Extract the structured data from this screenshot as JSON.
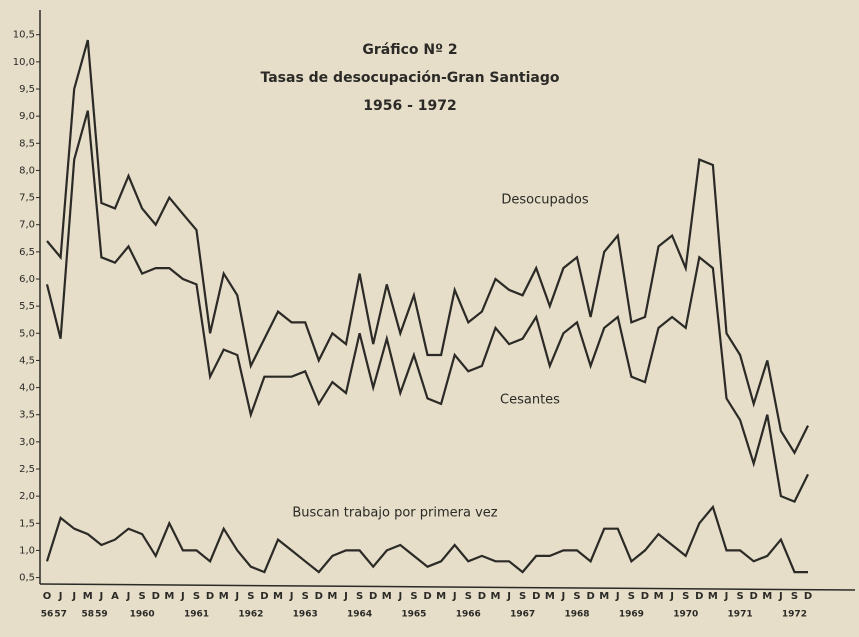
{
  "chart_data": {
    "type": "line",
    "title": "Gráfico Nº 2",
    "subtitle": "Tasas de desocupación-Gran Santiago",
    "period": "1956 - 1972",
    "categories": [
      "O",
      "J",
      "J",
      "M",
      "J",
      "A",
      "J",
      "S",
      "D",
      "M",
      "J",
      "S",
      "D",
      "M",
      "J",
      "S",
      "D",
      "M",
      "J",
      "S",
      "D",
      "M",
      "J",
      "S",
      "D",
      "M",
      "J",
      "S",
      "D",
      "M",
      "J",
      "S",
      "D",
      "M",
      "J",
      "S",
      "D",
      "M",
      "J",
      "S",
      "D",
      "M",
      "J",
      "S",
      "D",
      "M",
      "J",
      "S",
      "D",
      "M",
      "J",
      "S",
      "D",
      "M",
      "J",
      "S",
      "D"
    ],
    "category_years": [
      "56",
      "57",
      null,
      "58",
      "59",
      null,
      null,
      "1960",
      null,
      null,
      null,
      "1961",
      null,
      null,
      null,
      "1962",
      null,
      null,
      null,
      "1963",
      null,
      null,
      null,
      "1964",
      null,
      null,
      null,
      "1965",
      null,
      null,
      null,
      "1966",
      null,
      null,
      null,
      "1967",
      null,
      null,
      null,
      "1968",
      null,
      null,
      null,
      "1969",
      null,
      null,
      null,
      "1970",
      null,
      null,
      null,
      "1971",
      null,
      null,
      null,
      "1972",
      null
    ],
    "series": [
      {
        "name": "Desocupados",
        "color": "#2b2a26",
        "values": [
          6.7,
          6.4,
          9.5,
          10.4,
          7.4,
          7.3,
          7.9,
          7.3,
          7.0,
          7.5,
          7.2,
          6.9,
          5.0,
          6.1,
          5.7,
          4.4,
          4.9,
          5.4,
          5.2,
          5.2,
          4.5,
          5.0,
          4.8,
          6.1,
          4.8,
          5.9,
          5.0,
          5.7,
          4.6,
          4.6,
          5.8,
          5.2,
          5.4,
          6.0,
          5.8,
          5.7,
          6.2,
          5.5,
          6.2,
          6.4,
          5.3,
          6.5,
          6.8,
          5.2,
          5.3,
          6.6,
          6.8,
          6.2,
          8.2,
          8.1,
          5.0,
          4.6,
          3.7,
          4.5,
          3.2,
          2.8,
          3.3
        ]
      },
      {
        "name": "Cesantes",
        "color": "#2b2a26",
        "values": [
          5.9,
          4.9,
          8.2,
          9.1,
          6.4,
          6.3,
          6.6,
          6.1,
          6.2,
          6.2,
          6.0,
          5.9,
          4.2,
          4.7,
          4.6,
          3.5,
          4.2,
          4.2,
          4.2,
          4.3,
          3.7,
          4.1,
          3.9,
          5.0,
          4.0,
          4.9,
          3.9,
          4.6,
          3.8,
          3.7,
          4.6,
          4.3,
          4.4,
          5.1,
          4.8,
          4.9,
          5.3,
          4.4,
          5.0,
          5.2,
          4.4,
          5.1,
          5.3,
          4.2,
          4.1,
          5.1,
          5.3,
          5.1,
          6.4,
          6.2,
          3.8,
          3.4,
          2.6,
          3.5,
          2.0,
          1.9,
          2.4
        ]
      },
      {
        "name": "Buscan trabajo por primera vez",
        "color": "#2b2a26",
        "values": [
          0.8,
          1.6,
          1.4,
          1.3,
          1.1,
          1.2,
          1.4,
          1.3,
          0.9,
          1.5,
          1.0,
          1.0,
          0.8,
          1.4,
          1.0,
          0.7,
          0.6,
          1.2,
          1.0,
          0.8,
          0.6,
          0.9,
          1.0,
          1.0,
          0.7,
          1.0,
          1.1,
          0.9,
          0.7,
          0.8,
          1.1,
          0.8,
          0.9,
          0.8,
          0.8,
          0.6,
          0.9,
          0.9,
          1.0,
          1.0,
          0.8,
          1.4,
          1.4,
          0.8,
          1.0,
          1.3,
          1.1,
          0.9,
          1.5,
          1.8,
          1.0,
          1.0,
          0.8,
          0.9,
          1.2,
          0.6,
          0.6
        ]
      }
    ],
    "ylim": [
      0.4,
      10.9
    ],
    "yticks": [
      {
        "value": 0.5,
        "label": "0,5"
      },
      {
        "value": 1.0,
        "label": "1,0"
      },
      {
        "value": 1.5,
        "label": "1,5"
      },
      {
        "value": 2.0,
        "label": "2,0"
      },
      {
        "value": 2.5,
        "label": "2,5"
      },
      {
        "value": 3.0,
        "label": "3,0"
      },
      {
        "value": 3.5,
        "label": "3,5"
      },
      {
        "value": 4.0,
        "label": "4,0"
      },
      {
        "value": 4.5,
        "label": "4,5"
      },
      {
        "value": 5.0,
        "label": "5,0"
      },
      {
        "value": 5.5,
        "label": "5,5"
      },
      {
        "value": 6.0,
        "label": "6,0"
      },
      {
        "value": 6.5,
        "label": "6,5"
      },
      {
        "value": 7.0,
        "label": "7,0"
      },
      {
        "value": 7.5,
        "label": "7,5"
      },
      {
        "value": 8.0,
        "label": "8,0"
      },
      {
        "value": 8.5,
        "label": "8,5"
      },
      {
        "value": 9.0,
        "label": "9,0"
      },
      {
        "value": 9.5,
        "label": "9,5"
      },
      {
        "value": 10.0,
        "label": "10,0"
      },
      {
        "value": 10.5,
        "label": "10,5"
      }
    ],
    "grid": false
  }
}
